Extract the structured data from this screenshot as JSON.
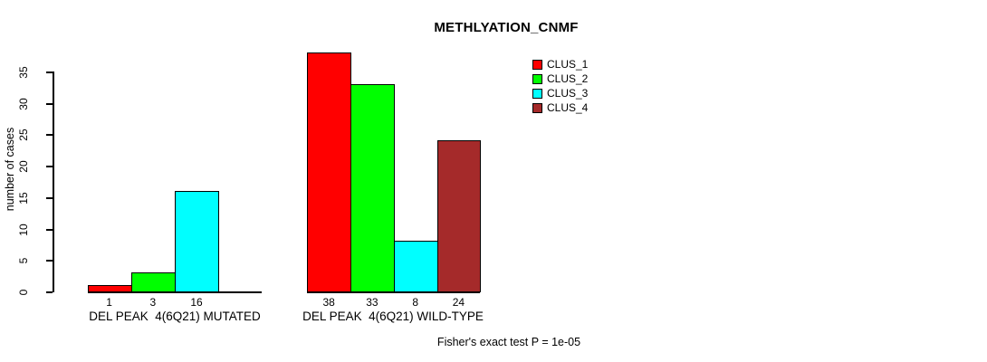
{
  "chart_data": {
    "type": "bar",
    "title": "METHLYATION_CNMF",
    "ylabel": "number of cases",
    "ylim": [
      0,
      35
    ],
    "yticks": [
      0,
      5,
      10,
      15,
      20,
      25,
      30,
      35
    ],
    "grid": false,
    "legend_position": "top-right",
    "clusters": [
      "CLUS_1",
      "CLUS_2",
      "CLUS_3",
      "CLUS_4"
    ],
    "colors": [
      "#ff0000",
      "#00ff00",
      "#00ffff",
      "#a52a2a"
    ],
    "groups": [
      {
        "label": "DEL PEAK  4(6Q21) MUTATED",
        "values": [
          1,
          3,
          16,
          null
        ]
      },
      {
        "label": "DEL PEAK  4(6Q21) WILD-TYPE",
        "values": [
          38,
          33,
          8,
          24
        ]
      }
    ],
    "footnote": "Fisher's exact test P = 1e-05"
  }
}
